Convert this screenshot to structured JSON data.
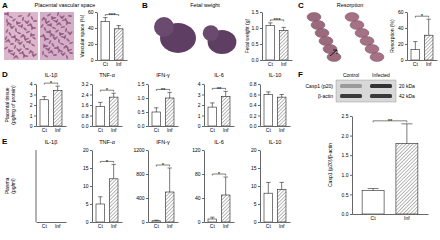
{
  "chart_data": [
    {
      "type": "bar",
      "title": "Placental vascular space",
      "y_label": "Vascular space (%)",
      "categories": [
        "Ct",
        "Inf"
      ],
      "values": [
        48,
        39
      ],
      "errors": [
        5,
        4
      ],
      "colors": [
        "#ffffff",
        "#ffffff"
      ],
      "ylim": [
        0,
        60
      ],
      "yticks": [
        0,
        20,
        40,
        60
      ],
      "annotation": "***"
    },
    {
      "type": "bar",
      "title": "Fetal weight",
      "y_label": "Fetal weight (g)",
      "categories": [
        "Ct",
        "Inf"
      ],
      "values": [
        1.08,
        0.92
      ],
      "errors": [
        0.08,
        0.1
      ],
      "colors": [
        "#ffffff",
        "#ffffff"
      ],
      "ylim": [
        0,
        1.5
      ],
      "yticks": [
        {
          "value": 0,
          "label": "0.0"
        },
        0.5,
        {
          "value": 1,
          "label": "1.0"
        },
        1.5
      ],
      "annotation": "***"
    },
    {
      "type": "bar",
      "title": "Resorption",
      "y_label": "Resorption (%)",
      "categories": [
        "Ct",
        "Inf"
      ],
      "values": [
        13,
        31
      ],
      "errors": [
        10,
        20
      ],
      "colors": [
        "#ffffff",
        "#ffffff"
      ],
      "ylim": [
        0,
        60
      ],
      "yticks": [
        0,
        20,
        40,
        60
      ],
      "annotation": "*"
    },
    {
      "type": "bar",
      "title": "IL-1β",
      "categories": [
        "Ct",
        "Inf"
      ],
      "values": [
        2.5,
        3.4
      ],
      "errors": [
        0.3,
        0.4
      ],
      "colors": [
        "#ffffff",
        "#ffffff"
      ],
      "ylim": [
        0,
        4
      ],
      "yticks": [
        0,
        1,
        2,
        3,
        4
      ],
      "annotation": "*"
    },
    {
      "type": "bar",
      "title": "TNF-α",
      "categories": [
        "Ct",
        "Inf"
      ],
      "values": [
        1.5,
        2.2
      ],
      "errors": [
        0.3,
        0.3
      ],
      "colors": [
        "#ffffff",
        "#ffffff"
      ],
      "ylim": [
        0,
        3.2
      ],
      "yticks": [
        {
          "value": 0,
          "label": "0.0"
        },
        0.8,
        1.6,
        2.4,
        3.2
      ],
      "annotation": "*"
    },
    {
      "type": "bar",
      "title": "IFN-γ",
      "categories": [
        "Ct",
        "Inf"
      ],
      "values": [
        0.5,
        1.0
      ],
      "errors": [
        0.15,
        0.2
      ],
      "colors": [
        "#ffffff",
        "#ffffff"
      ],
      "ylim": [
        0,
        1.5
      ],
      "yticks": [
        {
          "value": 0,
          "label": "0.0"
        },
        0.5,
        {
          "value": 1,
          "label": "1.0"
        },
        1.5
      ],
      "annotation": "**"
    },
    {
      "type": "bar",
      "title": "IL-6",
      "categories": [
        "Ct",
        "Inf"
      ],
      "values": [
        1.8,
        2.8
      ],
      "errors": [
        0.4,
        0.5
      ],
      "colors": [
        "#ffffff",
        "#ffffff"
      ],
      "ylim": [
        0,
        4
      ],
      "yticks": [
        0,
        1,
        2,
        3,
        4
      ],
      "annotation": "**"
    },
    {
      "type": "bar",
      "title": "IL-10",
      "categories": [
        "Ct",
        "Inf"
      ],
      "values": [
        0.6,
        0.55
      ],
      "errors": [
        0.05,
        0.05
      ],
      "colors": [
        "#ffffff",
        "#ffffff"
      ],
      "ylim": [
        0,
        0.8
      ],
      "yticks": [
        {
          "value": 0,
          "label": "0.0"
        },
        0.2,
        0.4,
        0.6,
        0.8
      ]
    },
    {
      "type": "bar",
      "title": "IL-1β",
      "categories": [
        "Ct",
        "Inf"
      ],
      "values": [
        null,
        null
      ],
      "errors": [
        null,
        null
      ],
      "colors": [
        "#ffffff",
        "#ffffff"
      ],
      "tick_labels": "x"
    },
    {
      "type": "bar",
      "title": "TNF-α",
      "categories": [
        "Ct",
        "Inf"
      ],
      "values": [
        5,
        12
      ],
      "errors": [
        2,
        4
      ],
      "colors": [
        "#ffffff",
        "#ffffff"
      ],
      "ylim": [
        0,
        20
      ],
      "yticks": [
        0,
        5,
        10,
        15,
        20
      ],
      "annotation": "*"
    },
    {
      "type": "bar",
      "title": "IFN-γ",
      "categories": [
        "Ct",
        "Inf"
      ],
      "values": [
        20,
        500
      ],
      "errors": [
        10,
        400
      ],
      "colors": [
        "#ffffff",
        "#ffffff"
      ],
      "ylim": [
        0,
        1200
      ],
      "yticks": [
        0,
        400,
        800,
        1200
      ],
      "annotation": "*"
    },
    {
      "type": "bar",
      "title": "IL-6",
      "categories": [
        "Ct",
        "Inf"
      ],
      "values": [
        5,
        45
      ],
      "errors": [
        3,
        30
      ],
      "colors": [
        "#ffffff",
        "#ffffff"
      ],
      "ylim": [
        0,
        120
      ],
      "yticks": [
        0,
        40,
        80,
        120
      ],
      "annotation": "*"
    },
    {
      "type": "bar",
      "title": "IL-10",
      "categories": [
        "Ct",
        "Inf"
      ],
      "values": [
        8,
        9
      ],
      "errors": [
        3,
        2
      ],
      "colors": [
        "#ffffff",
        "#ffffff"
      ],
      "ylim": [
        0,
        20
      ],
      "yticks": [
        0,
        5,
        10,
        15,
        20
      ]
    },
    {
      "type": "bar",
      "y_label": "Casp1 (p20)/β-actin",
      "categories": [
        "Ct",
        "Inf"
      ],
      "values": [
        0.6,
        1.8
      ],
      "errors": [
        0.05,
        0.5
      ],
      "colors": [
        "#ffffff",
        "#ffffff"
      ],
      "ylim": [
        0,
        2.5
      ],
      "yticks": [
        {
          "value": 0,
          "label": "0.0"
        },
        0.5,
        {
          "value": 1,
          "label": "1.0"
        },
        1.5,
        {
          "value": 2,
          "label": "2.0"
        },
        2.5
      ],
      "annotation": "**"
    }
  ],
  "figure": {
    "panel_labels": [
      "A",
      "B",
      "C",
      "D",
      "E",
      "F"
    ],
    "row_labels": [
      [
        "Placental tissue",
        "(pg/mg of protein)"
      ],
      [
        "Plasma",
        "(pg/ml)"
      ]
    ],
    "blot": {
      "lanes": [
        "Control",
        "Infected"
      ],
      "bands": [
        "Casp1 (p20)",
        "β-actin"
      ],
      "sizes": [
        "20 kDa",
        "42 kDa"
      ]
    }
  }
}
